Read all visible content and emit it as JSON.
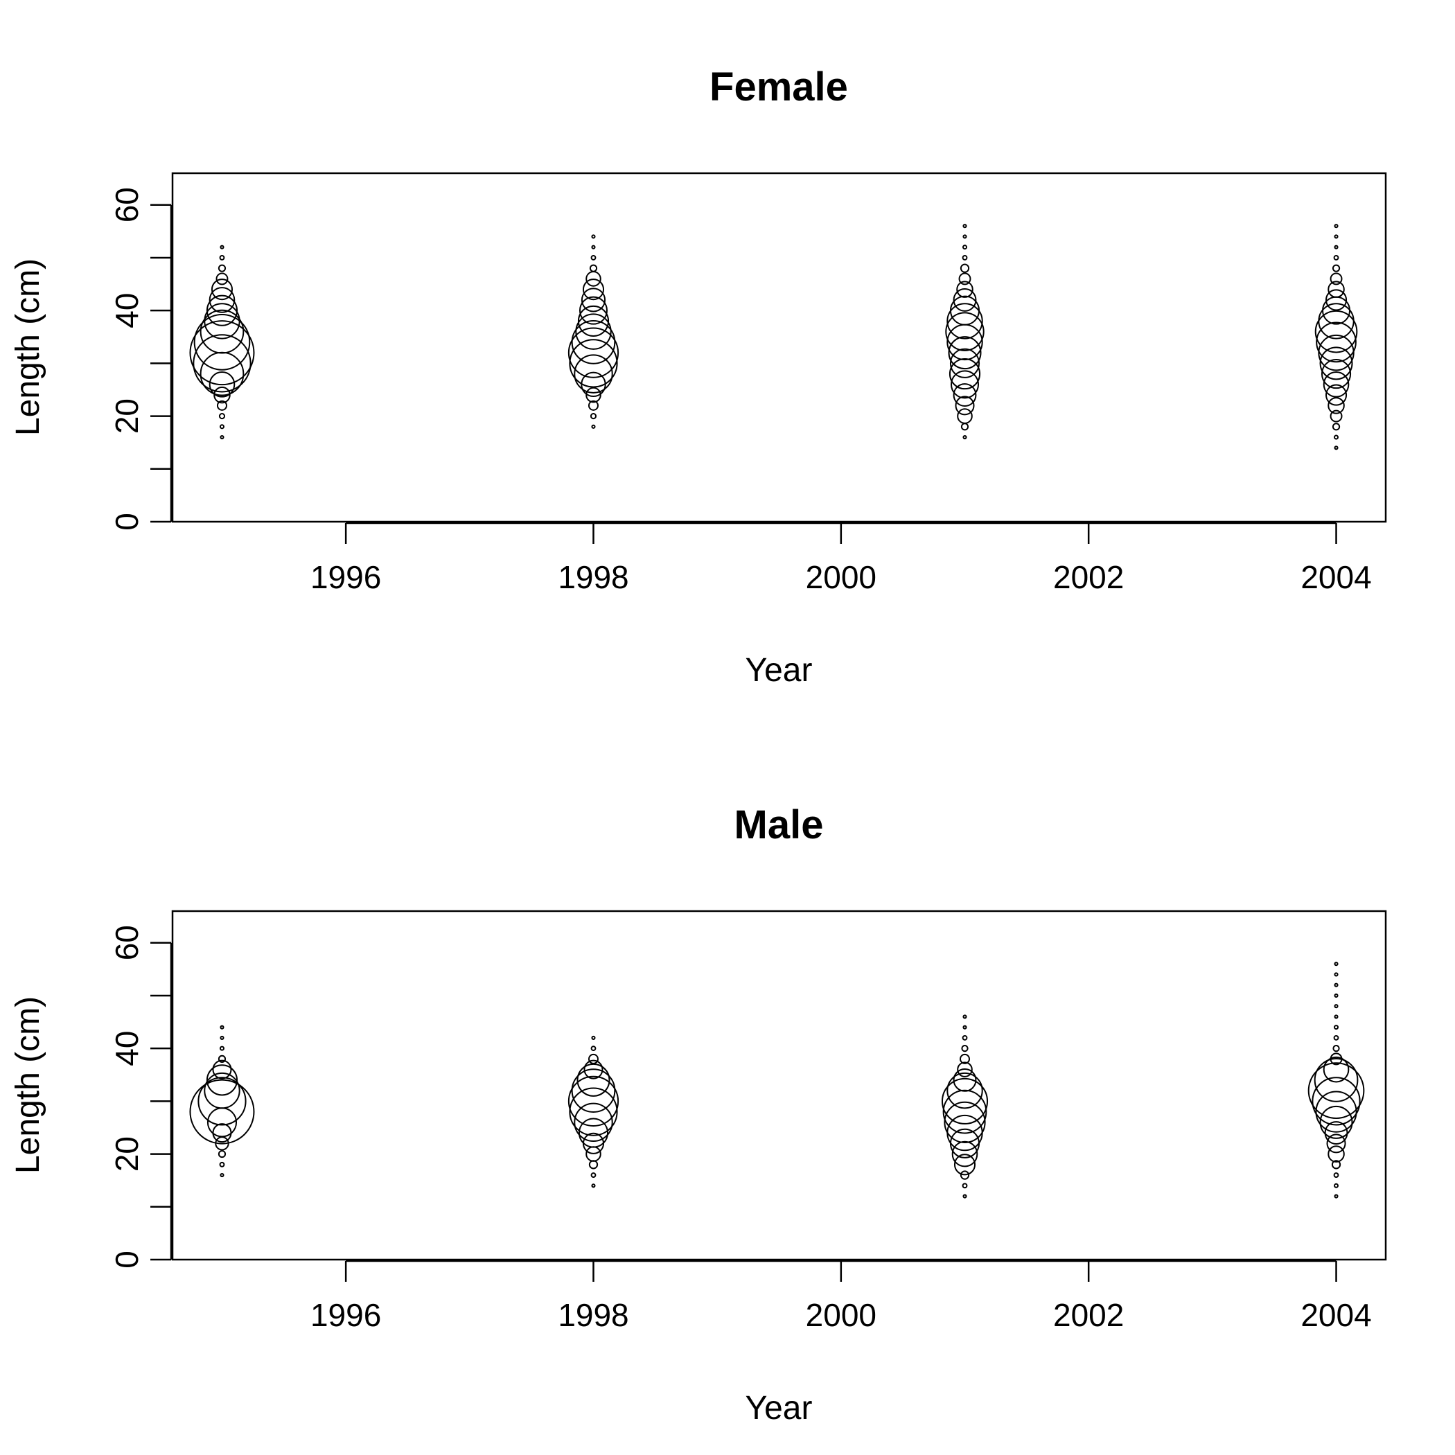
{
  "chart_data": [
    {
      "type": "scatter",
      "subtype": "bubble",
      "title": "Female",
      "xlabel": "Year",
      "ylabel": "Length (cm)",
      "xlim": [
        1994.6,
        2004.4
      ],
      "ylim": [
        0,
        66
      ],
      "xticks": [
        1996,
        1998,
        2000,
        2002,
        2004
      ],
      "yticks": [
        0,
        20,
        40,
        60
      ],
      "yminor_ticks": [
        10,
        30,
        50
      ],
      "grid": false,
      "note": "bubble area proportional to relative frequency (0-1) within each year",
      "series": [
        {
          "x": 1995,
          "lengths": [
            16,
            18,
            20,
            22,
            24,
            26,
            28,
            30,
            32,
            34,
            36,
            38,
            40,
            42,
            44,
            46,
            48,
            50,
            52
          ],
          "values": [
            0.002,
            0.003,
            0.006,
            0.02,
            0.06,
            0.15,
            0.45,
            0.8,
            1.0,
            0.75,
            0.45,
            0.3,
            0.22,
            0.15,
            0.1,
            0.03,
            0.01,
            0.004,
            0.002
          ]
        },
        {
          "x": 1998,
          "lengths": [
            18,
            20,
            22,
            24,
            26,
            28,
            30,
            32,
            34,
            36,
            38,
            40,
            42,
            44,
            46,
            48,
            50,
            52,
            54
          ],
          "values": [
            0.002,
            0.006,
            0.02,
            0.05,
            0.14,
            0.35,
            0.55,
            0.6,
            0.45,
            0.3,
            0.22,
            0.18,
            0.13,
            0.1,
            0.05,
            0.01,
            0.004,
            0.002,
            0.002
          ]
        },
        {
          "x": 2001,
          "lengths": [
            16,
            18,
            20,
            22,
            24,
            26,
            28,
            30,
            32,
            34,
            36,
            38,
            40,
            42,
            44,
            46,
            48,
            50,
            52,
            54,
            56
          ],
          "values": [
            0.002,
            0.01,
            0.05,
            0.08,
            0.12,
            0.18,
            0.22,
            0.2,
            0.25,
            0.3,
            0.35,
            0.3,
            0.2,
            0.12,
            0.06,
            0.03,
            0.015,
            0.004,
            0.003,
            0.002,
            0.002
          ]
        },
        {
          "x": 2004,
          "lengths": [
            14,
            16,
            18,
            20,
            22,
            24,
            26,
            28,
            30,
            32,
            34,
            36,
            38,
            40,
            42,
            44,
            46,
            48,
            50,
            52,
            54,
            56
          ],
          "values": [
            0.002,
            0.003,
            0.01,
            0.03,
            0.06,
            0.1,
            0.15,
            0.2,
            0.25,
            0.3,
            0.38,
            0.42,
            0.3,
            0.18,
            0.1,
            0.06,
            0.03,
            0.01,
            0.004,
            0.002,
            0.002,
            0.002
          ]
        }
      ]
    },
    {
      "type": "scatter",
      "subtype": "bubble",
      "title": "Male",
      "xlabel": "Year",
      "ylabel": "Length (cm)",
      "xlim": [
        1994.6,
        2004.4
      ],
      "ylim": [
        0,
        66
      ],
      "xticks": [
        1996,
        1998,
        2000,
        2002,
        2004
      ],
      "yticks": [
        0,
        20,
        40,
        60
      ],
      "yminor_ticks": [
        10,
        30,
        50
      ],
      "grid": false,
      "note": "bubble area proportional to relative frequency (0-1) within each year",
      "series": [
        {
          "x": 1995,
          "lengths": [
            16,
            18,
            20,
            22,
            24,
            26,
            28,
            30,
            32,
            34,
            36,
            38,
            40,
            42,
            44
          ],
          "values": [
            0.002,
            0.004,
            0.01,
            0.04,
            0.08,
            0.2,
            1.0,
            0.55,
            0.3,
            0.22,
            0.08,
            0.01,
            0.003,
            0.002,
            0.002
          ]
        },
        {
          "x": 1998,
          "lengths": [
            14,
            16,
            18,
            20,
            22,
            24,
            26,
            28,
            30,
            32,
            34,
            36,
            38,
            40,
            42
          ],
          "values": [
            0.002,
            0.004,
            0.015,
            0.05,
            0.1,
            0.2,
            0.35,
            0.55,
            0.6,
            0.45,
            0.25,
            0.08,
            0.02,
            0.004,
            0.002
          ]
        },
        {
          "x": 2001,
          "lengths": [
            12,
            14,
            16,
            18,
            20,
            22,
            24,
            26,
            28,
            30,
            32,
            34,
            36,
            38,
            40,
            42,
            44,
            46
          ],
          "values": [
            0.002,
            0.004,
            0.015,
            0.1,
            0.15,
            0.2,
            0.3,
            0.4,
            0.45,
            0.5,
            0.3,
            0.12,
            0.05,
            0.02,
            0.008,
            0.004,
            0.002,
            0.002
          ]
        },
        {
          "x": 2004,
          "lengths": [
            12,
            14,
            16,
            18,
            20,
            22,
            24,
            26,
            28,
            30,
            32,
            34,
            36,
            38,
            40,
            42,
            44,
            46,
            48,
            50,
            52,
            54,
            56
          ],
          "values": [
            0.002,
            0.003,
            0.004,
            0.015,
            0.06,
            0.08,
            0.12,
            0.25,
            0.4,
            0.55,
            0.75,
            0.45,
            0.15,
            0.03,
            0.008,
            0.004,
            0.003,
            0.002,
            0.002,
            0.002,
            0.002,
            0.002,
            0.002
          ]
        }
      ]
    }
  ]
}
